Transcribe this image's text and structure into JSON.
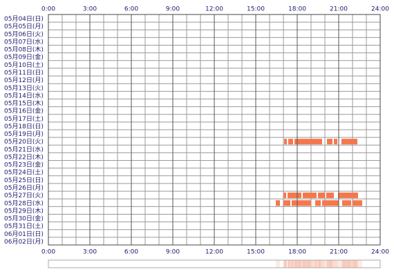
{
  "chart_data": {
    "type": "timeline",
    "xlim": [
      0,
      24
    ],
    "xticks": [
      {
        "value": 0,
        "label": "0:00"
      },
      {
        "value": 3,
        "label": "3:00"
      },
      {
        "value": 6,
        "label": "6:00"
      },
      {
        "value": 9,
        "label": "9:00"
      },
      {
        "value": 12,
        "label": "12:00"
      },
      {
        "value": 15,
        "label": "15:00"
      },
      {
        "value": 18,
        "label": "18:00"
      },
      {
        "value": 21,
        "label": "21:00"
      },
      {
        "value": 24,
        "label": "24:00"
      }
    ],
    "grid": true,
    "color": "#f4784e",
    "rows": [
      {
        "label": "05月04日(日)",
        "segments": []
      },
      {
        "label": "05月05日(月)",
        "segments": []
      },
      {
        "label": "05月06日(火)",
        "segments": []
      },
      {
        "label": "05月07日(水)",
        "segments": []
      },
      {
        "label": "05月08日(木)",
        "segments": []
      },
      {
        "label": "05月09日(金)",
        "segments": []
      },
      {
        "label": "05月10日(土)",
        "segments": []
      },
      {
        "label": "05月11日(日)",
        "segments": []
      },
      {
        "label": "05月12日(月)",
        "segments": []
      },
      {
        "label": "05月13日(火)",
        "segments": []
      },
      {
        "label": "05月14日(水)",
        "segments": []
      },
      {
        "label": "05月15日(木)",
        "segments": []
      },
      {
        "label": "05月16日(金)",
        "segments": []
      },
      {
        "label": "05月17日(土)",
        "segments": []
      },
      {
        "label": "05月18日(日)",
        "segments": []
      },
      {
        "label": "05月19日(月)",
        "segments": []
      },
      {
        "label": "05月20日(火)",
        "segments": [
          [
            17.05,
            17.25
          ],
          [
            17.35,
            17.7
          ],
          [
            17.8,
            19.8
          ],
          [
            20.15,
            20.55
          ],
          [
            20.65,
            20.9
          ],
          [
            21.2,
            22.35
          ]
        ]
      },
      {
        "label": "05月21日(水)",
        "segments": []
      },
      {
        "label": "05月22日(木)",
        "segments": []
      },
      {
        "label": "05月23日(金)",
        "segments": []
      },
      {
        "label": "05月24日(土)",
        "segments": []
      },
      {
        "label": "05月25日(日)",
        "segments": []
      },
      {
        "label": "05月26日(月)",
        "segments": []
      },
      {
        "label": "05月27日(火)",
        "segments": [
          [
            17.0,
            17.2
          ],
          [
            17.3,
            18.3
          ],
          [
            18.4,
            19.4
          ],
          [
            19.5,
            20.0
          ],
          [
            20.1,
            20.65
          ],
          [
            20.95,
            22.4
          ]
        ]
      },
      {
        "label": "05月28日(水)",
        "segments": [
          [
            16.45,
            16.75
          ],
          [
            17.0,
            17.5
          ],
          [
            17.6,
            19.0
          ],
          [
            19.3,
            19.7
          ],
          [
            19.8,
            21.0
          ],
          [
            21.25,
            21.9
          ],
          [
            22.0,
            22.7
          ]
        ]
      },
      {
        "label": "05月29日(木)",
        "segments": []
      },
      {
        "label": "05月30日(金)",
        "segments": []
      },
      {
        "label": "05月31日(土)",
        "segments": []
      },
      {
        "label": "06月01日(日)",
        "segments": []
      },
      {
        "label": "06月02日(月)",
        "segments": []
      }
    ]
  }
}
